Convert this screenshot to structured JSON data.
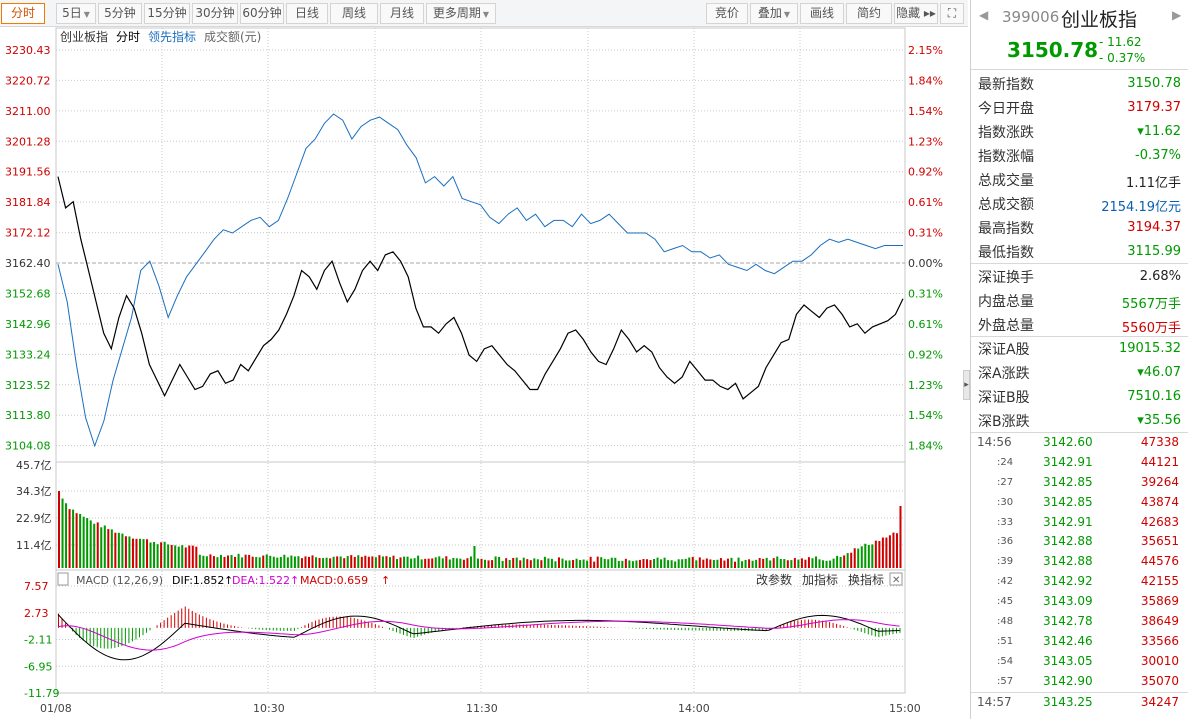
{
  "toolbar": {
    "items": [
      {
        "label": "分时",
        "active": true
      },
      {
        "label": "5日",
        "dropdown": true
      },
      {
        "label": "5分钟"
      },
      {
        "label": "15分钟"
      },
      {
        "label": "30分钟"
      },
      {
        "label": "60分钟"
      },
      {
        "label": "日线"
      },
      {
        "label": "周线"
      },
      {
        "label": "月线"
      },
      {
        "label": "更多周期",
        "dropdown": true
      }
    ],
    "right_items": [
      {
        "label": "竞价"
      },
      {
        "label": "叠加",
        "dropdown": true
      },
      {
        "label": "画线"
      },
      {
        "label": "简约"
      },
      {
        "label": "隐藏 ▸▸"
      }
    ],
    "fullscreen_icon": "expand-icon"
  },
  "legend": {
    "name": "创业板指",
    "mode": "分时",
    "leading": "领先指标",
    "volume": "成交额(元)"
  },
  "colors": {
    "up": "#d00000",
    "down": "#009900",
    "price_line": "#000000",
    "leading_line": "#1a6fc0",
    "dea": "#d000d0",
    "grid": "#c9c9c9"
  },
  "chart_data": [
    {
      "type": "line",
      "name": "price",
      "yticks": [
        "3230.43",
        "3220.72",
        "3211.00",
        "3201.28",
        "3191.56",
        "3181.84",
        "3172.12",
        "3162.40",
        "3152.68",
        "3142.96",
        "3133.24",
        "3123.52",
        "3113.80",
        "3104.08"
      ],
      "pct_ticks": [
        "2.15%",
        "1.84%",
        "1.54%",
        "1.23%",
        "0.92%",
        "0.61%",
        "0.31%",
        "0.00%",
        "0.31%",
        "0.61%",
        "0.92%",
        "1.23%",
        "1.54%",
        "1.84%"
      ],
      "ylim": [
        3099.5,
        3230.43
      ],
      "base": 3162.4,
      "x_labels": [
        "01/08",
        "10:30",
        "11:30",
        "14:00",
        "15:00"
      ],
      "series": [
        {
          "values": [
            3190,
            3180,
            3182,
            3170,
            3160,
            3150,
            3140,
            3135,
            3145,
            3152,
            3148,
            3140,
            3130,
            3125,
            3120,
            3125,
            3130,
            3126,
            3122,
            3123,
            3127,
            3128,
            3124,
            3125,
            3130,
            3128,
            3132,
            3136,
            3138,
            3141,
            3146,
            3152,
            3160,
            3158,
            3154,
            3160,
            3163,
            3156,
            3150,
            3154,
            3160,
            3163,
            3160,
            3165,
            3166,
            3163,
            3158,
            3148,
            3142,
            3142,
            3140,
            3143,
            3145,
            3140,
            3133,
            3131,
            3135,
            3136,
            3133,
            3130,
            3128,
            3125,
            3122,
            3122,
            3127,
            3131,
            3135,
            3140,
            3141,
            3138,
            3134,
            3131,
            3130,
            3135,
            3141,
            3138,
            3134,
            3136,
            3134,
            3129,
            3126,
            3124,
            3126,
            3131,
            3128,
            3125,
            3125,
            3123,
            3122,
            3124,
            3119,
            3121,
            3123,
            3129,
            3133,
            3137,
            3138,
            3146,
            3149,
            3147,
            3145,
            3148,
            3149,
            3146,
            3142,
            3143,
            3140,
            3142,
            3143,
            3144,
            3146,
            3151
          ]
        },
        {
          "values": [
            3162,
            3150,
            3130,
            3113,
            3104,
            3112,
            3125,
            3135,
            3145,
            3160,
            3163,
            3155,
            3145,
            3152,
            3158,
            3162,
            3166,
            3170,
            3173,
            3172,
            3174,
            3176,
            3177,
            3174,
            3176,
            3183,
            3191,
            3199,
            3202,
            3207,
            3210,
            3208,
            3202,
            3206,
            3208,
            3209,
            3207,
            3205,
            3200,
            3196,
            3188,
            3190,
            3187,
            3190,
            3183,
            3182,
            3181,
            3177,
            3175,
            3178,
            3180,
            3176,
            3178,
            3174,
            3176,
            3176,
            3174,
            3178,
            3175,
            3176,
            3178,
            3175,
            3172,
            3172,
            3172,
            3170,
            3166,
            3167,
            3168,
            3166,
            3166,
            3164,
            3165,
            3162,
            3161,
            3160,
            3162,
            3160,
            3159,
            3161,
            3163,
            3163,
            3165,
            3168,
            3170,
            3169,
            3170,
            3169,
            3168,
            3167,
            3168,
            3168,
            3168
          ]
        }
      ]
    },
    {
      "type": "bar",
      "name": "volume",
      "yticks": [
        "45.7亿",
        "34.3亿",
        "22.9亿",
        "11.4亿"
      ],
      "ylim": [
        0,
        45.7
      ]
    },
    {
      "type": "line",
      "name": "macd",
      "label": "MACD (12,26,9)",
      "dif": "DIF:1.852",
      "dea": "DEA:1.522",
      "macd": "MACD:0.659",
      "yticks": [
        "7.57",
        "2.73",
        "-2.11",
        "-6.95",
        "-11.79"
      ],
      "ylim": [
        -11.79,
        7.57
      ]
    }
  ],
  "macd_controls": {
    "params": "改参数",
    "add": "加指标",
    "switch": "换指标"
  },
  "panel": {
    "code": "399006",
    "name": "创业板指",
    "price": "3150.78",
    "change": "- 11.62",
    "change_pct": "- 0.37%",
    "stats1": [
      {
        "label": "最新指数",
        "value": "3150.78",
        "color": "green"
      },
      {
        "label": "今日开盘",
        "value": "3179.37",
        "color": "red"
      },
      {
        "label": "指数涨跌",
        "value": "▾11.62",
        "color": "green"
      },
      {
        "label": "指数涨幅",
        "value": "-0.37%",
        "color": "green"
      },
      {
        "label": "总成交量",
        "value": "1.11亿手",
        "color": "black"
      },
      {
        "label": "总成交额",
        "value": "2154.19亿元",
        "color": "blue"
      },
      {
        "label": "最高指数",
        "value": "3194.37",
        "color": "red"
      },
      {
        "label": "最低指数",
        "value": "3115.99",
        "color": "green"
      }
    ],
    "stats2": [
      {
        "label": "深证换手",
        "value": "2.68%",
        "color": "black"
      },
      {
        "label": "内盘总量",
        "value": "5567万手",
        "color": "green"
      },
      {
        "label": "外盘总量",
        "value": "5560万手",
        "color": "red"
      }
    ],
    "stats3": [
      {
        "label": "深证A股",
        "value": "19015.32",
        "color": "green"
      },
      {
        "label": "深A涨跌",
        "value": "▾46.07",
        "color": "green"
      },
      {
        "label": "深证B股",
        "value": "7510.16",
        "color": "green"
      },
      {
        "label": "深B涨跌",
        "value": "▾35.56",
        "color": "green"
      }
    ],
    "ticks": [
      {
        "time": "14:56",
        "price": "3142.60",
        "vol": "47338",
        "big": true
      },
      {
        "time": ":24",
        "price": "3142.91",
        "vol": "44121"
      },
      {
        "time": ":27",
        "price": "3142.85",
        "vol": "39264"
      },
      {
        "time": ":30",
        "price": "3142.85",
        "vol": "43874"
      },
      {
        "time": ":33",
        "price": "3142.91",
        "vol": "42683"
      },
      {
        "time": ":36",
        "price": "3142.88",
        "vol": "35651"
      },
      {
        "time": ":39",
        "price": "3142.88",
        "vol": "44576"
      },
      {
        "time": ":42",
        "price": "3142.92",
        "vol": "42155"
      },
      {
        "time": ":45",
        "price": "3143.09",
        "vol": "35869"
      },
      {
        "time": ":48",
        "price": "3142.78",
        "vol": "38649"
      },
      {
        "time": ":51",
        "price": "3142.46",
        "vol": "33566"
      },
      {
        "time": ":54",
        "price": "3143.05",
        "vol": "30010"
      },
      {
        "time": ":57",
        "price": "3142.90",
        "vol": "35070"
      },
      {
        "time": "14:57",
        "price": "3143.25",
        "vol": "34247",
        "big": true
      }
    ]
  }
}
